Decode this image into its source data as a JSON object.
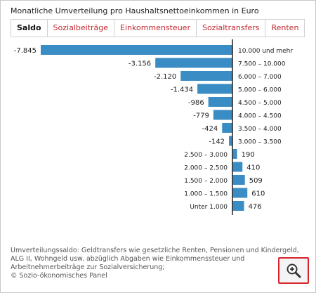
{
  "header": {
    "title": "Monatliche Umverteilung pro Haushaltsnettoeinkommen in Euro"
  },
  "tabs": [
    {
      "label": "Saldo",
      "active": true
    },
    {
      "label": "Sozialbeiträge",
      "active": false
    },
    {
      "label": "Einkommensteuer",
      "active": false
    },
    {
      "label": "Sozialtransfers",
      "active": false
    },
    {
      "label": "Renten",
      "active": false
    }
  ],
  "chart_data": {
    "type": "bar",
    "orientation": "horizontal",
    "categories": [
      "10.000 und mehr",
      "7.500 – 10.000",
      "6.000 – 7.000",
      "5.000 – 6.000",
      "4.500 – 5.000",
      "4.000 – 4.500",
      "3.500 – 4.000",
      "3.000 – 3.500",
      "2.500 – 3.000",
      "2.000 – 2.500",
      "1.500 – 2.000",
      "1.000 – 1.500",
      "Unter 1.000"
    ],
    "values": [
      -7845,
      -3156,
      -2120,
      -1434,
      -986,
      -779,
      -424,
      -142,
      190,
      410,
      509,
      610,
      476
    ],
    "value_labels": [
      "-7.845",
      "-3.156",
      "-2.120",
      "-1.434",
      "-986",
      "-779",
      "-424",
      "-142",
      "190",
      "410",
      "509",
      "610",
      "476"
    ],
    "bar_color": "#3a8cc4",
    "axis_color": "#222222",
    "grid": false,
    "legend": "none"
  },
  "footer": {
    "note": "Umverteilungssaldo: Geldtransfers wie gesetzliche Renten, Pensionen und Kindergeld, ALG II, Wohngeld usw. abzüglich Abgaben wie Einkommenssteuer und Arbeitnehmerbeiträge zur Sozialversicherung;",
    "source": "© Sozio-ökonomisches Panel"
  },
  "zoom_button": {
    "icon": "zoom-in-icon",
    "border_color": "#d8242a"
  }
}
